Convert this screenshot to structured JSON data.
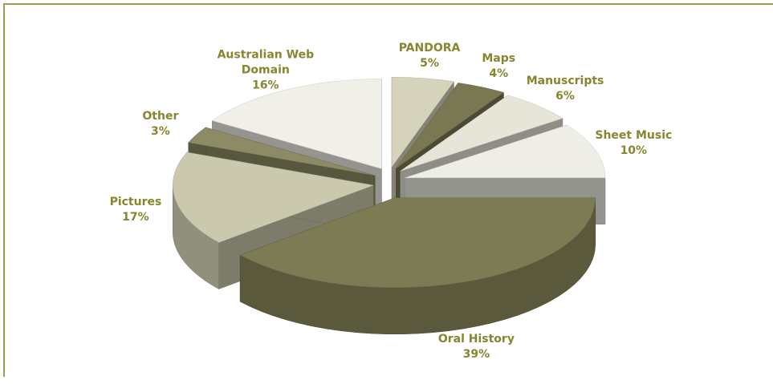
{
  "chart_data": {
    "type": "pie",
    "categories": [
      "PANDORA",
      "Maps",
      "Manuscripts",
      "Sheet Music",
      "Oral History",
      "Pictures",
      "Other",
      "Australian Web Domain"
    ],
    "values": [
      5,
      4,
      6,
      10,
      39,
      17,
      3,
      16
    ],
    "value_labels": [
      "5%",
      "4%",
      "6%",
      "10%",
      "39%",
      "17%",
      "3%",
      "16%"
    ],
    "colors": [
      "#d6d3bc",
      "#7a7853",
      "#e6e5d8",
      "#efeee6",
      "#7d7b53",
      "#cac8ad",
      "#8d8b66",
      "#f0efe8"
    ]
  }
}
